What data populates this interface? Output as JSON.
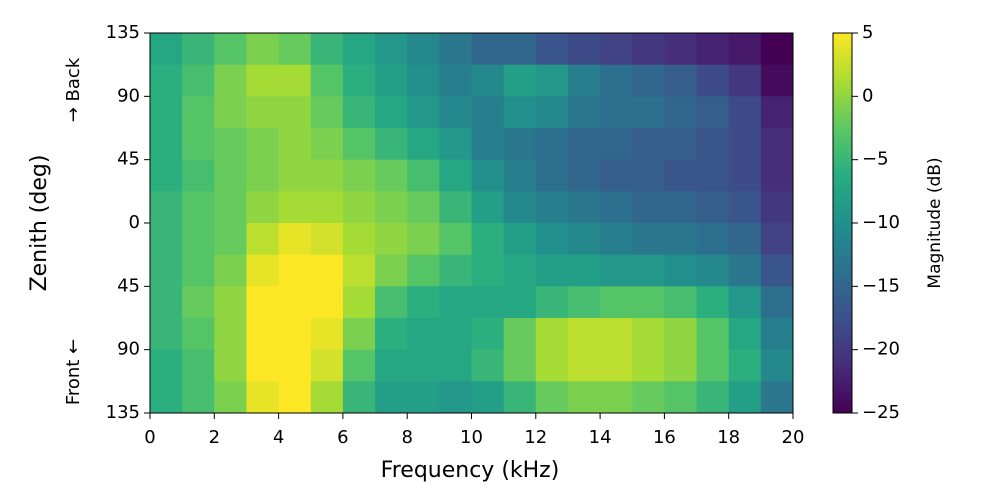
{
  "chart_data": {
    "type": "heatmap",
    "colormap": "viridis",
    "xlabel": "Frequency (kHz)",
    "ylabel": "Zenith (deg)",
    "colorbar_label": "Magnitude (dB)",
    "annotations": [
      "→ Back",
      "Front ←"
    ],
    "x": [
      0.5,
      1.5,
      2.5,
      3.5,
      4.5,
      5.5,
      6.5,
      7.5,
      8.5,
      9.5,
      10.5,
      11.5,
      12.5,
      13.5,
      14.5,
      15.5,
      16.5,
      17.5,
      18.5,
      19.5
    ],
    "y": [
      123.75,
      101.25,
      78.75,
      56.25,
      33.75,
      11.25,
      -11.25,
      -33.75,
      -56.25,
      -78.75,
      -101.25,
      -123.75
    ],
    "values": [
      [
        -7,
        -5,
        -3,
        -1,
        -2,
        -5,
        -7,
        -9,
        -11,
        -13,
        -15,
        -15,
        -17,
        -18,
        -19,
        -20,
        -21,
        -22,
        -23,
        -25
      ],
      [
        -6,
        -4,
        -1,
        1,
        1,
        -3,
        -6,
        -8,
        -10,
        -12,
        -11,
        -8,
        -9,
        -12,
        -14,
        -15,
        -16,
        -18,
        -20,
        -24
      ],
      [
        -6,
        -3,
        -1,
        0,
        0,
        -2,
        -5,
        -7,
        -9,
        -11,
        -12,
        -10,
        -11,
        -13,
        -14,
        -14,
        -15,
        -16,
        -18,
        -22
      ],
      [
        -6,
        -3,
        -2,
        -1,
        0,
        -1,
        -3,
        -5,
        -7,
        -9,
        -12,
        -13,
        -14,
        -15,
        -15,
        -16,
        -16,
        -17,
        -18,
        -21
      ],
      [
        -6,
        -4,
        -2,
        -1,
        0,
        0,
        -1,
        -2,
        -4,
        -7,
        -10,
        -12,
        -14,
        -15,
        -16,
        -16,
        -17,
        -17,
        -18,
        -21
      ],
      [
        -5,
        -3,
        -2,
        0,
        1,
        1,
        0,
        -1,
        -2,
        -5,
        -8,
        -11,
        -12,
        -13,
        -14,
        -15,
        -15,
        -16,
        -17,
        -20
      ],
      [
        -5,
        -3,
        -2,
        2,
        4,
        3,
        1,
        0,
        -1,
        -3,
        -6,
        -8,
        -10,
        -11,
        -12,
        -13,
        -13,
        -14,
        -15,
        -19
      ],
      [
        -5,
        -3,
        -1,
        4,
        5,
        5,
        2,
        -1,
        -3,
        -5,
        -6,
        -7,
        -8,
        -8,
        -9,
        -9,
        -10,
        -11,
        -13,
        -17
      ],
      [
        -5,
        -2,
        0,
        5,
        5,
        5,
        1,
        -4,
        -6,
        -7,
        -7,
        -7,
        -5,
        -4,
        -3,
        -3,
        -4,
        -6,
        -9,
        -14
      ],
      [
        -5,
        -3,
        0,
        5,
        5,
        4,
        -1,
        -6,
        -7,
        -7,
        -6,
        -2,
        1,
        2,
        2,
        1,
        0,
        -3,
        -7,
        -12
      ],
      [
        -6,
        -4,
        0,
        5,
        5,
        3,
        -3,
        -7,
        -7,
        -7,
        -5,
        -2,
        1,
        2,
        2,
        1,
        0,
        -3,
        -6,
        -11
      ],
      [
        -6,
        -4,
        -1,
        4,
        5,
        1,
        -5,
        -8,
        -8,
        -9,
        -8,
        -5,
        -2,
        -1,
        -1,
        -2,
        -3,
        -5,
        -8,
        -13
      ]
    ],
    "xlim": [
      0,
      20
    ],
    "xticks": [
      0,
      2,
      4,
      6,
      8,
      10,
      12,
      14,
      16,
      18,
      20
    ],
    "ylim": [
      -135,
      135
    ],
    "yticks": [
      {
        "value": 135,
        "label": "135"
      },
      90,
      45,
      0,
      {
        "value": -45,
        "label": "45"
      },
      {
        "value": -90,
        "label": "90"
      },
      {
        "value": -135,
        "label": "135"
      }
    ],
    "clim": [
      -25,
      5
    ],
    "cticks": [
      5,
      0,
      {
        "value": -5,
        "label": "−5"
      },
      {
        "value": -10,
        "label": "−10"
      },
      {
        "value": -15,
        "label": "−15"
      },
      {
        "value": -20,
        "label": "−20"
      },
      {
        "value": -25,
        "label": "−25"
      }
    ]
  }
}
